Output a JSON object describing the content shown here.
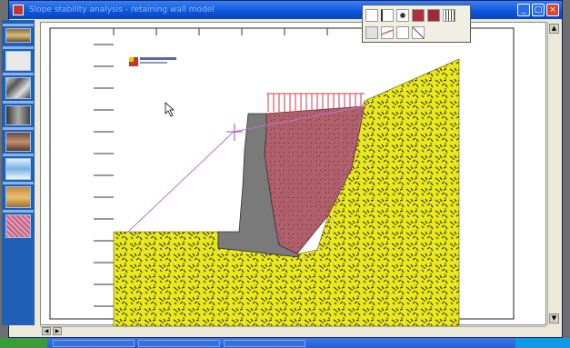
{
  "window": {
    "title": "Slope stability analysis - retaining wall model",
    "icon": "app-icon",
    "controls": [
      "minimize",
      "maximize",
      "close"
    ]
  },
  "sidebar": {
    "items": [
      {
        "name": "sidebar-item-1",
        "icon": "soil-profile-icon"
      },
      {
        "name": "sidebar-item-2",
        "icon": "document-icon"
      },
      {
        "name": "sidebar-item-3",
        "icon": "rock-icon"
      },
      {
        "name": "sidebar-item-4",
        "icon": "wall-icon"
      },
      {
        "name": "sidebar-item-5",
        "icon": "layers-icon"
      },
      {
        "name": "sidebar-item-6",
        "icon": "water-icon"
      },
      {
        "name": "sidebar-item-7",
        "icon": "sand-icon"
      },
      {
        "name": "sidebar-item-8",
        "icon": "grid-icon"
      }
    ]
  },
  "toolbox": {
    "tools": [
      "select-tool",
      "line-tool",
      "point-tool",
      "fill-tool",
      "pattern-tool",
      "grid-tool",
      "erase-tool",
      "measure-tool",
      "zoom-tool",
      "text-tool"
    ]
  },
  "colors": {
    "soil": "#e8e81a",
    "soil_pattern": "#3a3a1a",
    "wall": "#7a7a7a",
    "backfill": "#b0606a",
    "surface_load": "#d03a4a",
    "slip_line": "#c070d0",
    "sidebar": "#1f5fb8"
  }
}
